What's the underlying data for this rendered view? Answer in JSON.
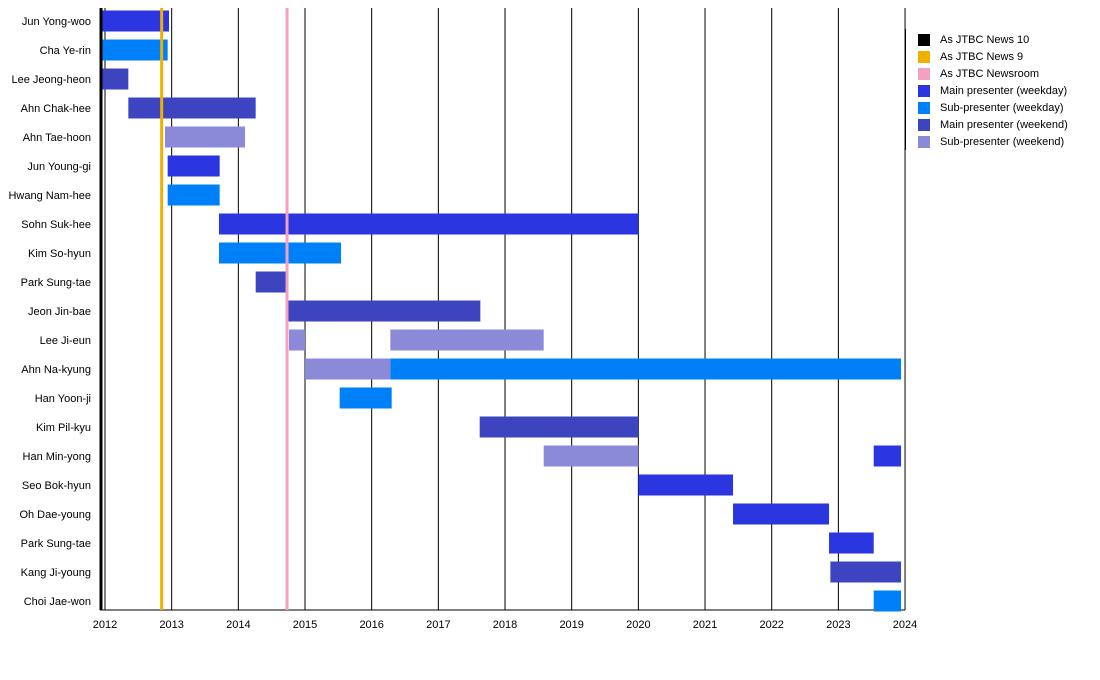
{
  "chart_data": {
    "type": "timeline",
    "xlim": [
      2011.94,
      2024
    ],
    "x_ticks": [
      "2012",
      "2013",
      "2014",
      "2015",
      "2016",
      "2017",
      "2018",
      "2019",
      "2020",
      "2021",
      "2022",
      "2023",
      "2024"
    ],
    "grid": true,
    "legend_position": "right",
    "categories": [
      "Main presenter (weekday)",
      "Sub-presenter (weekday)",
      "Main presenter (weekend)",
      "Sub-presenter (weekend)"
    ],
    "colors": {
      "Main presenter (weekday)": "#2b36e0",
      "Sub-presenter (weekday)": "#0080f8",
      "Main presenter (weekend)": "#3c44c0",
      "Sub-presenter (weekend)": "#8a8ad8",
      "As JTBC News 10": "#000000",
      "As JTBC News 9": "#f0b000",
      "As JTBC Newsroom": "#f4a0c0"
    },
    "markers": [
      {
        "label": "As JTBC News 10",
        "x": 2011.94
      },
      {
        "label": "As JTBC News 9",
        "x": 2012.85
      },
      {
        "label": "As JTBC Newsroom",
        "x": 2014.73
      }
    ],
    "rows": [
      {
        "name": "Jun Yong-woo",
        "bars": [
          {
            "start": 2011.94,
            "end": 2012.96,
            "role": "Main presenter (weekday)"
          }
        ]
      },
      {
        "name": "Cha Ye-rin",
        "bars": [
          {
            "start": 2011.94,
            "end": 2012.94,
            "role": "Sub-presenter (weekday)"
          }
        ]
      },
      {
        "name": "Lee Jeong-heon",
        "bars": [
          {
            "start": 2011.94,
            "end": 2012.35,
            "role": "Main presenter (weekend)"
          }
        ]
      },
      {
        "name": "Ahn Chak-hee",
        "bars": [
          {
            "start": 2012.35,
            "end": 2014.26,
            "role": "Main presenter (weekend)"
          }
        ]
      },
      {
        "name": "Ahn Tae-hoon",
        "bars": [
          {
            "start": 2012.9,
            "end": 2014.1,
            "role": "Sub-presenter (weekend)"
          }
        ]
      },
      {
        "name": "Jun Young-gi",
        "bars": [
          {
            "start": 2012.94,
            "end": 2013.72,
            "role": "Main presenter (weekday)"
          }
        ]
      },
      {
        "name": "Hwang Nam-hee",
        "bars": [
          {
            "start": 2012.94,
            "end": 2013.72,
            "role": "Sub-presenter (weekday)"
          }
        ]
      },
      {
        "name": "Sohn Suk-hee",
        "bars": [
          {
            "start": 2013.71,
            "end": 2020.0,
            "role": "Main presenter (weekday)"
          }
        ]
      },
      {
        "name": "Kim So-hyun",
        "bars": [
          {
            "start": 2013.71,
            "end": 2015.54,
            "role": "Sub-presenter (weekday)"
          }
        ]
      },
      {
        "name": "Park Sung-tae",
        "bars": [
          {
            "start": 2014.26,
            "end": 2014.73,
            "role": "Main presenter (weekend)"
          }
        ]
      },
      {
        "name": "Jeon Jin-bae",
        "bars": [
          {
            "start": 2014.73,
            "end": 2017.63,
            "role": "Main presenter (weekend)"
          }
        ]
      },
      {
        "name": "Lee Ji-eun",
        "bars": [
          {
            "start": 2014.76,
            "end": 2015.0,
            "role": "Sub-presenter (weekend)"
          },
          {
            "start": 2016.28,
            "end": 2018.58,
            "role": "Sub-presenter (weekend)"
          }
        ]
      },
      {
        "name": "Ahn Na-kyung",
        "bars": [
          {
            "start": 2015.0,
            "end": 2016.28,
            "role": "Sub-presenter (weekend)"
          },
          {
            "start": 2016.28,
            "end": 2023.94,
            "role": "Sub-presenter (weekday)"
          }
        ]
      },
      {
        "name": "Han Yoon-ji",
        "bars": [
          {
            "start": 2015.52,
            "end": 2016.3,
            "role": "Sub-presenter (weekday)"
          }
        ]
      },
      {
        "name": "Kim Pil-kyu",
        "bars": [
          {
            "start": 2017.62,
            "end": 2020.0,
            "role": "Main presenter (weekend)"
          }
        ]
      },
      {
        "name": "Han Min-yong",
        "bars": [
          {
            "start": 2018.58,
            "end": 2020.0,
            "role": "Sub-presenter (weekend)"
          },
          {
            "start": 2023.53,
            "end": 2023.94,
            "role": "Main presenter (weekday)"
          }
        ]
      },
      {
        "name": "Seo Bok-hyun",
        "bars": [
          {
            "start": 2020.0,
            "end": 2021.42,
            "role": "Main presenter (weekday)"
          }
        ]
      },
      {
        "name": "Oh Dae-young",
        "bars": [
          {
            "start": 2021.42,
            "end": 2022.86,
            "role": "Main presenter (weekday)"
          }
        ]
      },
      {
        "name": "Park Sung-tae",
        "bars": [
          {
            "start": 2022.86,
            "end": 2023.53,
            "role": "Main presenter (weekday)"
          }
        ]
      },
      {
        "name": "Kang Ji-young",
        "bars": [
          {
            "start": 2022.88,
            "end": 2023.94,
            "role": "Main presenter (weekend)"
          }
        ]
      },
      {
        "name": "Choi Jae-won",
        "bars": [
          {
            "start": 2023.53,
            "end": 2023.94,
            "role": "Sub-presenter (weekday)"
          }
        ]
      }
    ],
    "legend": [
      "As JTBC News 10",
      "As JTBC News 9",
      "As JTBC Newsroom",
      "Main presenter (weekday)",
      "Sub-presenter (weekday)",
      "Main presenter (weekend)",
      "Sub-presenter (weekend)"
    ]
  }
}
